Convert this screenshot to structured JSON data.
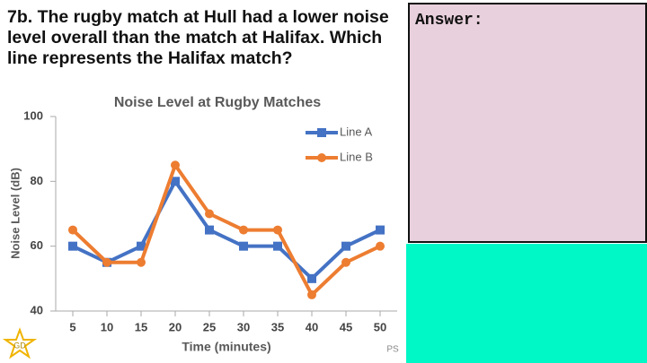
{
  "question": "7b. The rugby match at Hull had a lower noise level overall than the match at Halifax. Which line represents the Halifax match?",
  "answer_label": "Answer:",
  "badge": "GD",
  "footer": "PS",
  "chart_data": {
    "type": "line",
    "title": "Noise Level at Rugby Matches",
    "x_label": "Time (minutes)",
    "y_label": "Noise Level (dB)",
    "x": [
      5,
      10,
      15,
      20,
      25,
      30,
      35,
      40,
      45,
      50
    ],
    "xlim": [
      2.5,
      52.5
    ],
    "xticks": [
      5,
      10,
      15,
      20,
      25,
      30,
      35,
      40,
      45,
      50
    ],
    "ylim": [
      40,
      100
    ],
    "yticks": [
      40,
      60,
      80,
      100
    ],
    "legend": "upper right",
    "series": [
      {
        "name": "Line A",
        "color": "#4472c4",
        "marker": "square",
        "values": [
          60,
          55,
          60,
          80,
          65,
          60,
          60,
          50,
          60,
          65
        ]
      },
      {
        "name": "Line B",
        "color": "#ed7d31",
        "marker": "circle",
        "values": [
          65,
          55,
          55,
          85,
          70,
          65,
          65,
          45,
          55,
          60
        ]
      }
    ]
  }
}
